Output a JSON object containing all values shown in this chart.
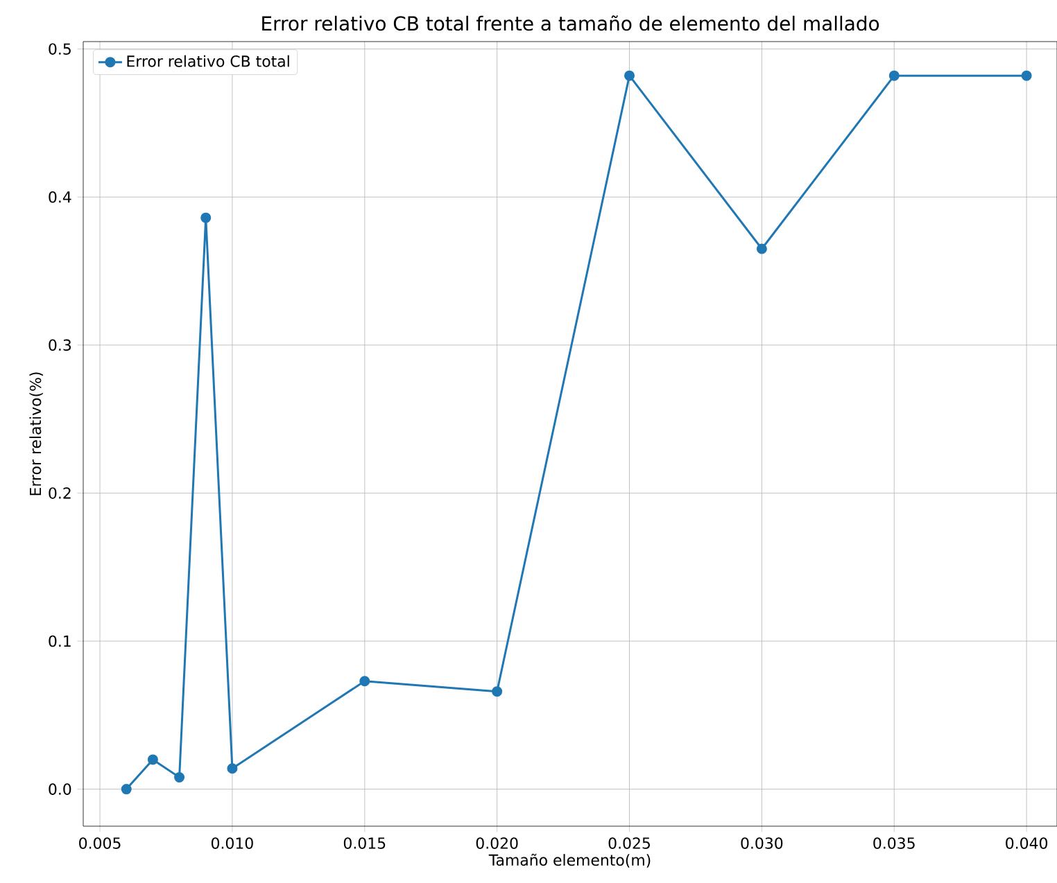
{
  "chart_data": {
    "type": "line",
    "title": "Error relativo CB total frente a tamaño de elemento del mallado",
    "xlabel": "Tamaño elemento(m)",
    "ylabel": "Error relativo(%)",
    "x": [
      0.006,
      0.007,
      0.008,
      0.009,
      0.01,
      0.015,
      0.02,
      0.025,
      0.03,
      0.035,
      0.04
    ],
    "series": [
      {
        "name": "Error relativo CB total",
        "color": "#1f77b4",
        "values": [
          0.0,
          0.02,
          0.008,
          0.386,
          0.014,
          0.073,
          0.066,
          0.482,
          0.365,
          0.482,
          0.482
        ]
      }
    ],
    "xlim": [
      0.00437,
      0.04115
    ],
    "ylim": [
      -0.025,
      0.505
    ],
    "xticks": [
      0.005,
      {
        "value": 0.01,
        "label": "0.010"
      },
      0.015,
      {
        "value": 0.02,
        "label": "0.020"
      },
      0.025,
      {
        "value": 0.03,
        "label": "0.030"
      },
      0.035,
      {
        "value": 0.04,
        "label": "0.040"
      }
    ],
    "yticks": [
      {
        "value": 0,
        "label": "0.0"
      },
      0.1,
      0.2,
      0.3,
      0.4,
      0.5
    ],
    "grid": true,
    "legend": "top left",
    "marker": "circle",
    "line_style": "solid"
  }
}
